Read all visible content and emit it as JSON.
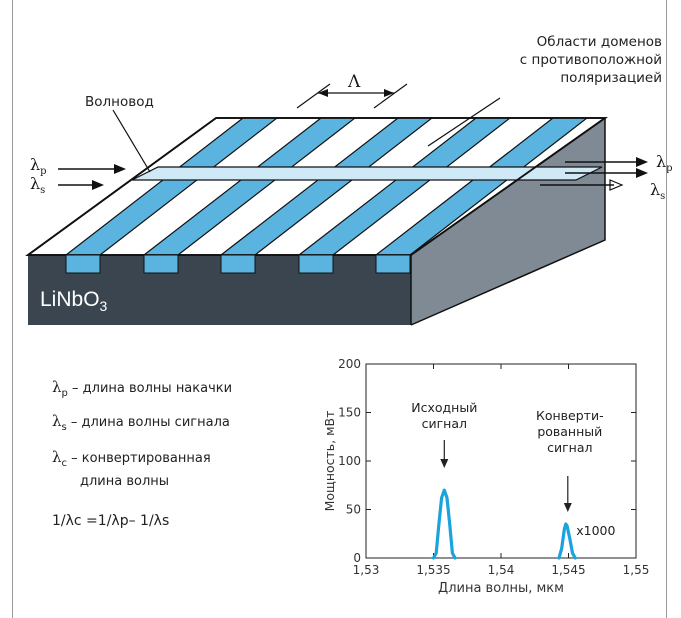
{
  "diagram": {
    "labels": {
      "domains": [
        "Области доменов",
        "с противоположной",
        "поляризацией"
      ],
      "waveguide": "Волновод",
      "period": "Λ",
      "crystal": "LiNbO",
      "crystal_sub": "3"
    },
    "beams_in": [
      {
        "symbol": "λ",
        "sub": "p"
      },
      {
        "symbol": "λ",
        "sub": "s"
      }
    ],
    "beams_out": [
      {
        "symbol": "λ",
        "sub": "p"
      },
      {
        "symbol": "λ",
        "sub": "s"
      }
    ],
    "colors": {
      "stripe": "#5bb3e0",
      "waveguide": "#cfe9f7",
      "front": "#3a4550",
      "side": "#7f8a94",
      "top": "#ffffff"
    }
  },
  "legend": [
    {
      "symbol": "λ",
      "sub": "p",
      "text": "– длина волны накачки"
    },
    {
      "symbol": "λ",
      "sub": "s",
      "text": "– длина волны сигнала"
    },
    {
      "symbol": "λ",
      "sub": "c",
      "text": "– конвертированная",
      "text2": "длина волны"
    }
  ],
  "formula": "1/λc =1/λp– 1/λs",
  "chart_data": {
    "type": "line",
    "xlabel": "Длина волны, мкм",
    "ylabel": "Мощность, мВт",
    "xlim": [
      1.53,
      1.55
    ],
    "ylim": [
      0,
      200
    ],
    "xticks": [
      "1,53",
      "1,535",
      "1,54",
      "1,545",
      "1,55"
    ],
    "yticks": [
      "0",
      "50",
      "100",
      "150",
      "200"
    ],
    "series": [
      {
        "x": [
          1.535,
          1.5352,
          1.5354,
          1.5356,
          1.5358,
          1.536,
          1.5362,
          1.5364,
          1.5366
        ],
        "values": [
          0,
          5,
          35,
          62,
          70,
          62,
          35,
          5,
          0
        ]
      },
      {
        "x": [
          1.5443,
          1.5445,
          1.5447,
          1.5448,
          1.5449,
          1.5451,
          1.5453,
          1.5455
        ],
        "values": [
          0,
          10,
          30,
          35,
          33,
          20,
          5,
          0
        ]
      }
    ],
    "annotations": [
      {
        "text": [
          "Исходный",
          "сигнал"
        ],
        "x": 1.5358,
        "y": 70
      },
      {
        "text": [
          "Конверти-",
          "рованный",
          "сигнал"
        ],
        "x": 1.5448,
        "y": 35
      },
      {
        "text": [
          "x1000"
        ],
        "x": 1.5455,
        "y": 28
      }
    ],
    "line_color": "#1aa3dc"
  }
}
